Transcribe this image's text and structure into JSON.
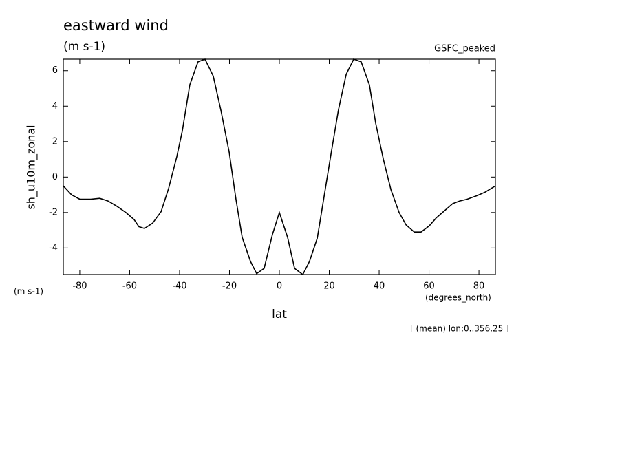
{
  "chart_data": {
    "type": "line",
    "title": "eastward wind",
    "subtitle": "(m s-1)",
    "dataset_label": "GSFC_peaked",
    "y_label": "sh_u10m_zonal",
    "y_units": "(m s-1)",
    "x_label": "lat",
    "x_units": "(degrees_north)",
    "annotation": "[ (mean) lon:0..356.25 ]",
    "xlim": [
      -86.6,
      86.6
    ],
    "ylim": [
      -5.5,
      6.65
    ],
    "xticks": [
      -80,
      -60,
      -40,
      -20,
      0,
      20,
      40,
      60,
      80
    ],
    "yticks": [
      -4,
      -2,
      0,
      2,
      4,
      6
    ],
    "series": [
      {
        "color": "#000000",
        "x": [
          -86.6,
          -83.3,
          -80.0,
          -75.6,
          -72.0,
          -68.7,
          -65.1,
          -61.5,
          -58.2,
          -56.3,
          -54.1,
          -50.8,
          -47.4,
          -44.4,
          -41.1,
          -38.9,
          -35.9,
          -32.6,
          -29.8,
          -26.5,
          -23.4,
          -20.1,
          -17.4,
          -14.9,
          -11.6,
          -9.1,
          -6.1,
          -2.8,
          0,
          3.3,
          6.1,
          9.4,
          12.1,
          15.2,
          17.7,
          20.7,
          23.7,
          26.8,
          29.8,
          32.8,
          36.1,
          38.6,
          41.7,
          44.7,
          48.0,
          50.8,
          54.1,
          56.8,
          60.1,
          62.9,
          66.2,
          69.5,
          72.3,
          75.3,
          79.2,
          82.5,
          86.6
        ],
        "values": [
          -0.5,
          -1.0,
          -1.25,
          -1.25,
          -1.2,
          -1.35,
          -1.65,
          -2.0,
          -2.4,
          -2.8,
          -2.9,
          -2.6,
          -1.95,
          -0.65,
          1.15,
          2.6,
          5.2,
          6.5,
          6.65,
          5.7,
          3.75,
          1.4,
          -1.25,
          -3.4,
          -4.75,
          -5.45,
          -5.15,
          -3.25,
          -2.0,
          -3.4,
          -5.15,
          -5.5,
          -4.75,
          -3.45,
          -1.3,
          1.3,
          3.8,
          5.8,
          6.65,
          6.5,
          5.2,
          3.05,
          1.0,
          -0.7,
          -2.0,
          -2.7,
          -3.1,
          -3.1,
          -2.75,
          -2.3,
          -1.9,
          -1.5,
          -1.35,
          -1.25,
          -1.05,
          -0.85,
          -0.5
        ]
      }
    ]
  }
}
